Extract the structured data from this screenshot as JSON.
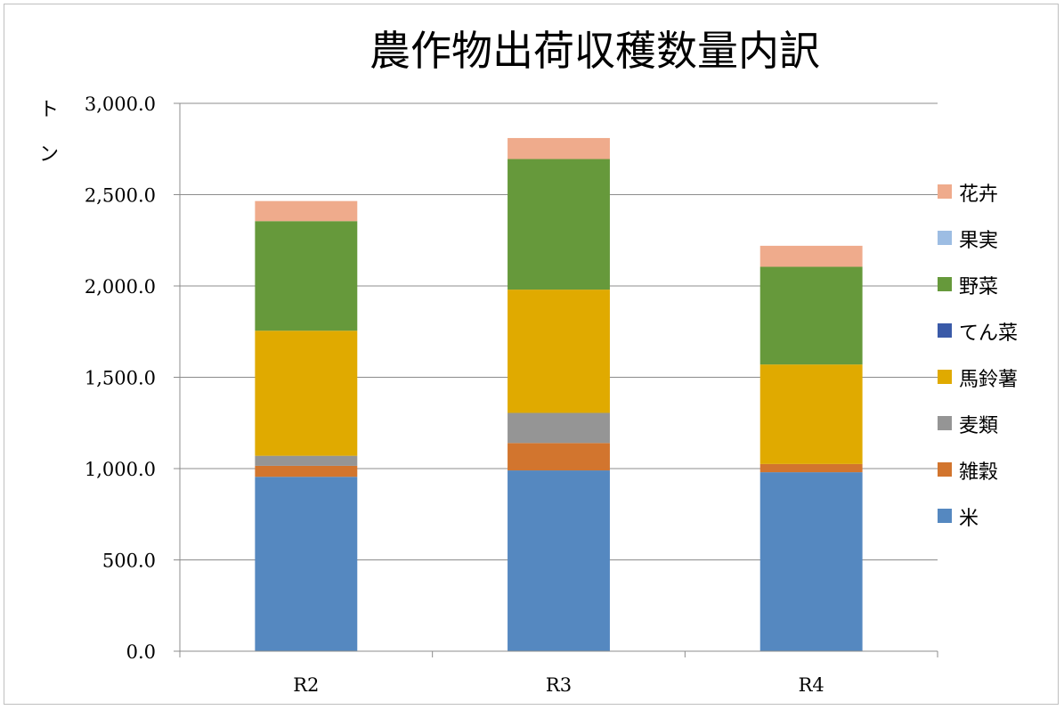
{
  "chart_data": {
    "type": "bar",
    "stacked": true,
    "title": "農作物出荷収穫数量内訳",
    "xlabel": "",
    "ylabel": "トン",
    "ylim": [
      0,
      3000
    ],
    "yticks": [
      0,
      500,
      1000,
      1500,
      2000,
      2500,
      3000
    ],
    "ytick_labels": [
      "0.0",
      "500.0",
      "1,000.0",
      "1,500.0",
      "2,000.0",
      "2,500.0",
      "3,000.0"
    ],
    "grid": true,
    "legend_position": "right",
    "categories": [
      "R2",
      "R3",
      "R4"
    ],
    "series": [
      {
        "name": "米",
        "color": "#5588c0",
        "values": [
          955,
          990,
          980
        ]
      },
      {
        "name": "雑穀",
        "color": "#d2752e",
        "values": [
          60,
          150,
          45
        ]
      },
      {
        "name": "麦類",
        "color": "#959595",
        "values": [
          55,
          165,
          0
        ]
      },
      {
        "name": "馬鈴薯",
        "color": "#e0aa00",
        "values": [
          685,
          675,
          545
        ]
      },
      {
        "name": "てん菜",
        "color": "#3a5aa8",
        "values": [
          0,
          0,
          0
        ]
      },
      {
        "name": "野菜",
        "color": "#66993b",
        "values": [
          600,
          715,
          535
        ]
      },
      {
        "name": "果実",
        "color": "#9dbde3",
        "values": [
          0,
          0,
          0
        ]
      },
      {
        "name": "花卉",
        "color": "#efab8c",
        "values": [
          110,
          115,
          115
        ]
      }
    ]
  }
}
